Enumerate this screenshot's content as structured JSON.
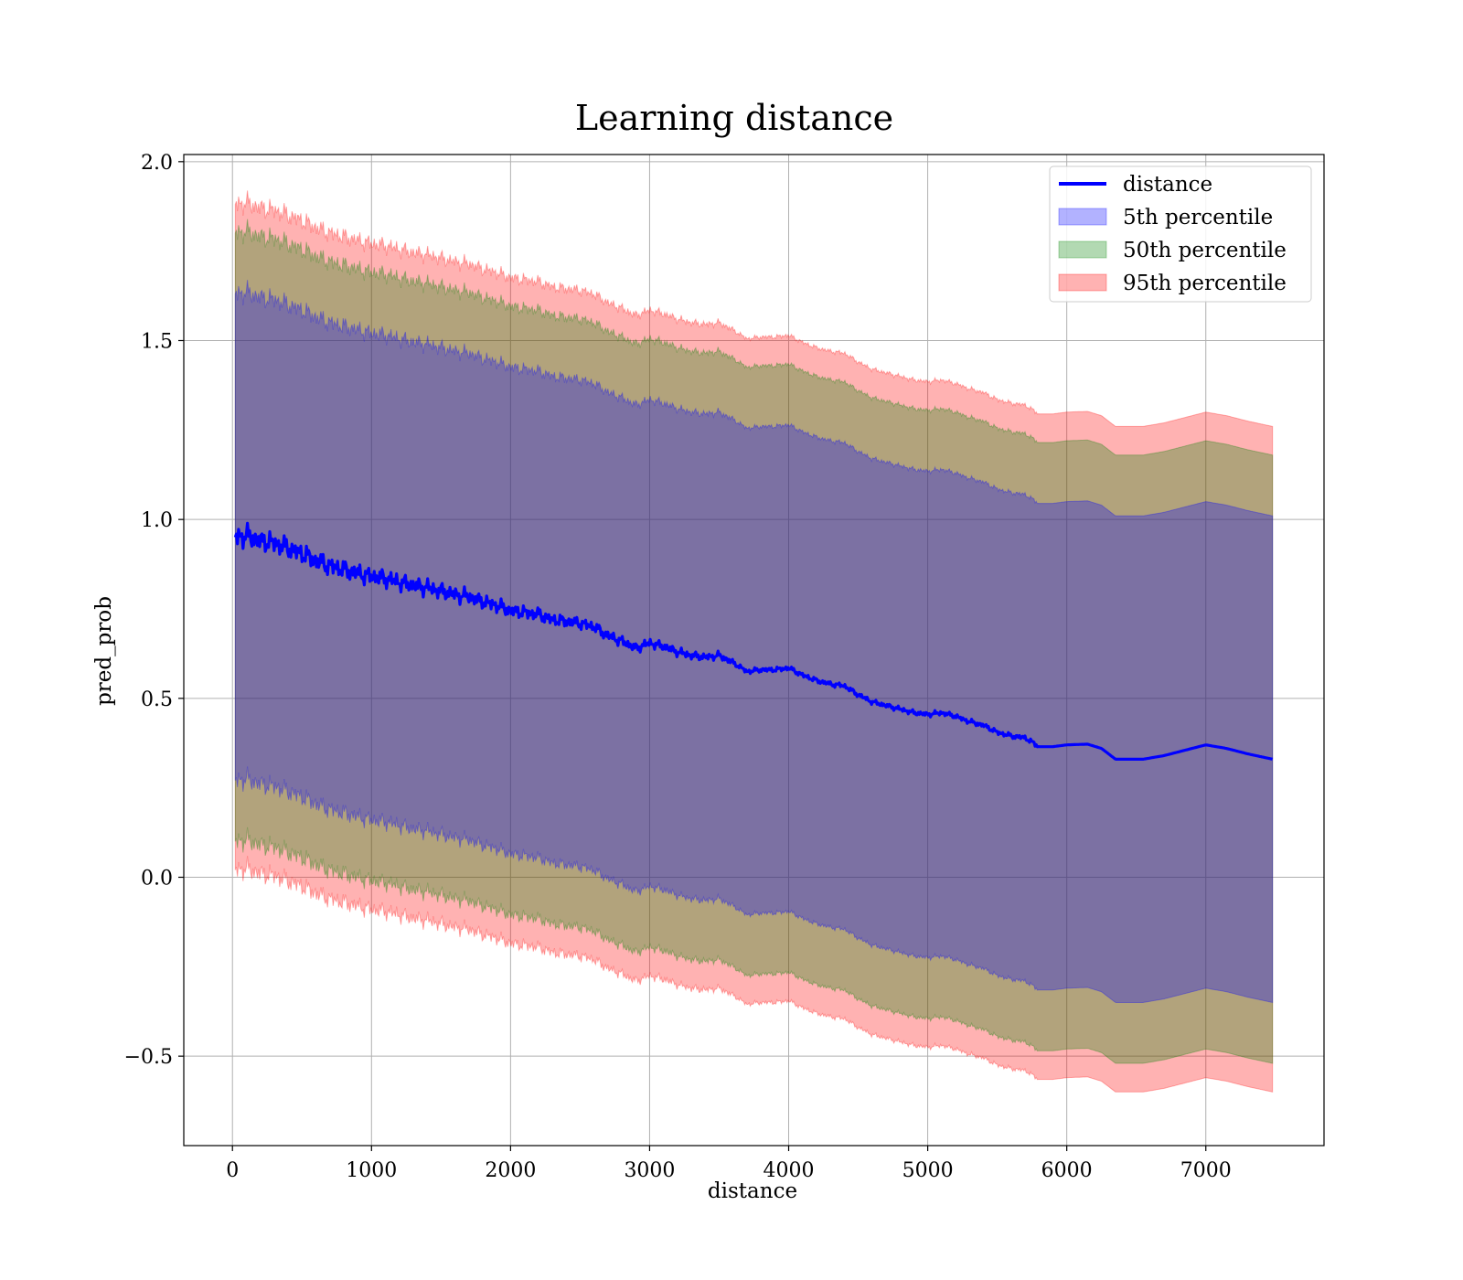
{
  "chart_data": {
    "type": "area",
    "title": "Learning distance",
    "xlabel": "distance",
    "ylabel": "pred_prob",
    "xlim": [
      -350,
      7850
    ],
    "ylim": [
      -0.75,
      2.02
    ],
    "x_ticks": [
      0,
      1000,
      2000,
      3000,
      4000,
      5000,
      6000,
      7000
    ],
    "x_tick_labels": [
      "0",
      "1000",
      "2000",
      "3000",
      "4000",
      "5000",
      "6000",
      "7000"
    ],
    "y_ticks": [
      -0.5,
      0.0,
      0.5,
      1.0,
      1.5,
      2.0
    ],
    "y_tick_labels": [
      "−0.5",
      "0.0",
      "0.5",
      "1.0",
      "1.5",
      "2.0"
    ],
    "grid": true,
    "legend_position": "top-right",
    "x": [
      20,
      100,
      200,
      300,
      400,
      500,
      600,
      700,
      800,
      900,
      1000,
      1100,
      1200,
      1300,
      1400,
      1500,
      1600,
      1700,
      1800,
      1900,
      2000,
      2100,
      2200,
      2300,
      2400,
      2500,
      2600,
      2700,
      2800,
      2900,
      3000,
      3100,
      3200,
      3300,
      3400,
      3500,
      3600,
      3700,
      3800,
      3900,
      4000,
      4100,
      4200,
      4300,
      4400,
      4500,
      4600,
      4700,
      4800,
      4900,
      5000,
      5100,
      5200,
      5300,
      5400,
      5500,
      5600,
      5700,
      5800,
      5900,
      6000,
      6150,
      6250,
      6350,
      6450,
      6550,
      6700,
      6850,
      7000,
      7150,
      7300,
      7480
    ],
    "series": [
      {
        "name": "distance",
        "kind": "line",
        "color": "#0000ff",
        "values": [
          0.95,
          0.955,
          0.94,
          0.935,
          0.92,
          0.905,
          0.885,
          0.87,
          0.86,
          0.85,
          0.84,
          0.835,
          0.825,
          0.815,
          0.81,
          0.8,
          0.79,
          0.785,
          0.77,
          0.76,
          0.745,
          0.74,
          0.735,
          0.72,
          0.715,
          0.71,
          0.7,
          0.675,
          0.66,
          0.64,
          0.655,
          0.645,
          0.63,
          0.62,
          0.615,
          0.62,
          0.6,
          0.575,
          0.58,
          0.58,
          0.585,
          0.565,
          0.55,
          0.54,
          0.535,
          0.51,
          0.49,
          0.48,
          0.47,
          0.46,
          0.455,
          0.46,
          0.45,
          0.435,
          0.425,
          0.405,
          0.395,
          0.39,
          0.365,
          0.365,
          0.37,
          0.372,
          0.36,
          0.33,
          0.33,
          0.33,
          0.34,
          0.355,
          0.37,
          0.36,
          0.345,
          0.33
        ]
      },
      {
        "name": "5th percentile",
        "kind": "band",
        "color": "#0000ff",
        "offset": 0.68
      },
      {
        "name": "50th percentile",
        "kind": "band",
        "color": "#008000",
        "offset": 0.85
      },
      {
        "name": "95th percentile",
        "kind": "band",
        "color": "#ff0000",
        "offset": 0.93
      }
    ]
  }
}
